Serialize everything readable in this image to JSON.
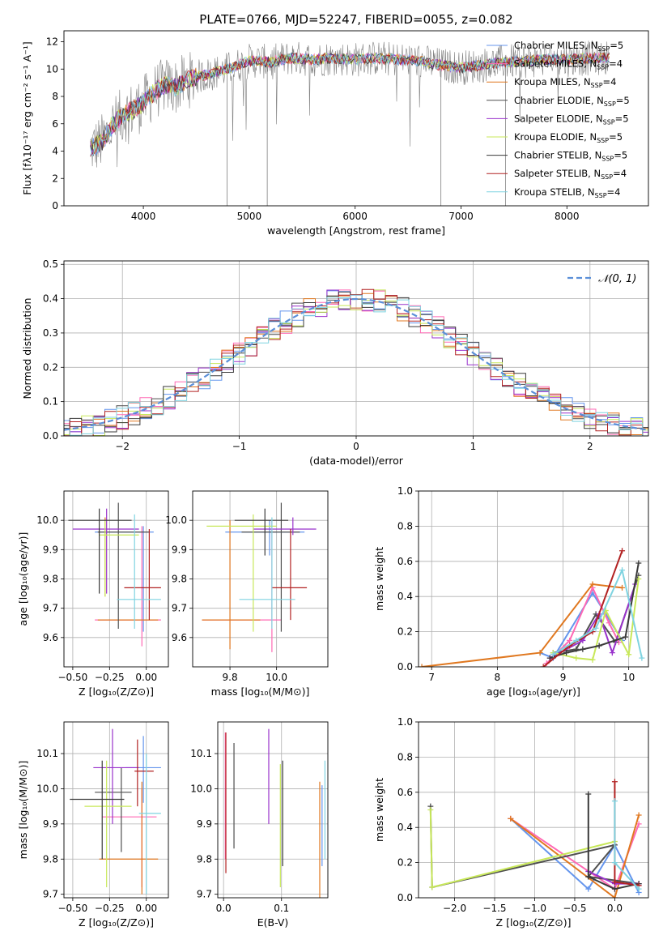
{
  "page": {
    "title": "PLATE=0766, MJD=52247, FIBERID=0055, z=0.082"
  },
  "colors": {
    "chabrier_miles": "#6495ed",
    "salpeter_miles": "#ff69b4",
    "kroupa_miles": "#e07820",
    "chabrier_elodie": "#4f4f4f",
    "salpeter_elodie": "#9932cc",
    "kroupa_elodie": "#c8e85a",
    "chabrier_stelib": "#3a3a3a",
    "salpeter_stelib": "#b22222",
    "kroupa_stelib": "#7fd3e0",
    "normal": "#5b8fd8"
  },
  "chart_data": [
    {
      "id": "spectrum",
      "type": "line",
      "title": "PLATE=0766, MJD=52247, FIBERID=0055, z=0.082",
      "xlabel": "wavelength [Angstrom, rest frame]",
      "ylabel": "Flux [fλ10⁻¹⁷ erg cm⁻² s⁻¹ A⁻¹]",
      "xlim": [
        3250,
        8770
      ],
      "ylim": [
        0,
        12.8
      ],
      "xticks": [
        "4000",
        "5000",
        "6000",
        "7000",
        "8000"
      ],
      "yticks": [
        "0",
        "2",
        "4",
        "6",
        "8",
        "10",
        "12"
      ],
      "legend_position": "right",
      "legend": [
        "Chabrier MILES, N_SSP=5",
        "Salpeter MILES, N_SSP=4",
        "Kroupa MILES, N_SSP=4",
        "Chabrier ELODIE, N_SSP=5",
        "Salpeter ELODIE, N_SSP=5",
        "Kroupa ELODIE, N_SSP=5",
        "Chabrier STELIB, N_SSP=5",
        "Salpeter STELIB, N_SSP=4",
        "Kroupa STELIB, N_SSP=4"
      ],
      "continuum": [
        [
          3500,
          4.2
        ],
        [
          3600,
          4.6
        ],
        [
          3700,
          5.8
        ],
        [
          3800,
          6.6
        ],
        [
          3900,
          7.0
        ],
        [
          4000,
          7.5
        ],
        [
          4100,
          8.3
        ],
        [
          4200,
          8.8
        ],
        [
          4300,
          8.7
        ],
        [
          4400,
          9.1
        ],
        [
          4500,
          9.4
        ],
        [
          4600,
          9.6
        ],
        [
          4700,
          9.8
        ],
        [
          4800,
          10.0
        ],
        [
          4900,
          10.3
        ],
        [
          5000,
          10.6
        ],
        [
          5100,
          10.6
        ],
        [
          5200,
          10.5
        ],
        [
          5300,
          10.7
        ],
        [
          5400,
          10.8
        ],
        [
          5600,
          10.7
        ],
        [
          5800,
          10.8
        ],
        [
          6000,
          10.7
        ],
        [
          6200,
          10.8
        ],
        [
          6400,
          10.7
        ],
        [
          6600,
          10.6
        ],
        [
          6800,
          10.3
        ],
        [
          7000,
          10.1
        ],
        [
          7200,
          10.3
        ],
        [
          7400,
          10.5
        ],
        [
          7600,
          10.6
        ],
        [
          7800,
          10.7
        ],
        [
          8000,
          10.7
        ],
        [
          8200,
          10.8
        ],
        [
          8400,
          10.8
        ]
      ]
    },
    {
      "id": "residuals",
      "type": "histogram",
      "xlabel": "(data-model)/error",
      "ylabel": "Normed distribution",
      "xlim": [
        -2.5,
        2.5
      ],
      "ylim": [
        0,
        0.51
      ],
      "xticks": [
        "−2",
        "−1",
        "0",
        "1",
        "2"
      ],
      "yticks": [
        "0.0",
        "0.1",
        "0.2",
        "0.3",
        "0.4",
        "0.5"
      ],
      "bin_width": 0.1,
      "legend": [
        "𝒩(0, 1)"
      ],
      "legend_position": "top-right",
      "normal_curve": {
        "mean": 0,
        "sigma": 1
      }
    },
    {
      "id": "age-vs-z",
      "type": "errorbar",
      "xlabel": "Z [log₁₀(Z/Z⊙)]",
      "ylabel": "age  [log₁₀(age/yr)]",
      "xlim": [
        -0.56,
        0.15
      ],
      "ylim": [
        9.5,
        10.1
      ],
      "xticks": [
        "−0.50",
        "−0.25",
        "0.00"
      ],
      "yticks": [
        "9.6",
        "9.7",
        "9.8",
        "9.9",
        "10.0"
      ]
    },
    {
      "id": "age-vs-mass",
      "type": "errorbar",
      "xlabel": "mass [log₁₀(M/M⊙)]",
      "ylabel": "",
      "xlim": [
        9.64,
        10.22
      ],
      "ylim": [
        9.5,
        10.1
      ],
      "xticks": [
        "9.8",
        "10.0"
      ],
      "yticks": [
        "9.6",
        "9.7",
        "9.8",
        "9.9",
        "10.0"
      ]
    },
    {
      "id": "mass-weight-vs-age",
      "type": "line",
      "xlabel": "age  [log₁₀(age/yr)]",
      "ylabel": "mass weight",
      "xlim": [
        6.8,
        10.3
      ],
      "ylim": [
        0,
        1
      ],
      "xticks": [
        "7",
        "8",
        "9",
        "10"
      ],
      "yticks": [
        "0.0",
        "0.2",
        "0.4",
        "0.6",
        "0.8",
        "1.0"
      ],
      "series": [
        {
          "color": "chabrier_miles",
          "x": [
            8.65,
            8.85,
            9.45,
            9.65,
            9.9
          ],
          "y": [
            0.08,
            0.05,
            0.42,
            0.3,
            0.15
          ]
        },
        {
          "color": "salpeter_miles",
          "x": [
            8.75,
            9.1,
            9.45,
            9.7,
            9.85
          ],
          "y": [
            0.02,
            0.15,
            0.45,
            0.25,
            0.14
          ]
        },
        {
          "color": "kroupa_miles",
          "x": [
            6.85,
            8.65,
            9.45,
            9.9
          ],
          "y": [
            0.0,
            0.08,
            0.47,
            0.45
          ]
        },
        {
          "color": "chabrier_elodie",
          "x": [
            8.85,
            9.2,
            9.5,
            9.8,
            10.15
          ],
          "y": [
            0.08,
            0.1,
            0.3,
            0.14,
            0.52
          ]
        },
        {
          "color": "salpeter_elodie",
          "x": [
            8.8,
            9.3,
            9.55,
            9.75,
            10.1
          ],
          "y": [
            0.05,
            0.15,
            0.3,
            0.08,
            0.47
          ]
        },
        {
          "color": "kroupa_elodie",
          "x": [
            8.85,
            9.2,
            9.45,
            9.65,
            10.0,
            10.15
          ],
          "y": [
            0.08,
            0.05,
            0.04,
            0.32,
            0.07,
            0.5
          ]
        },
        {
          "color": "chabrier_stelib",
          "x": [
            8.8,
            9.05,
            9.3,
            9.55,
            9.95,
            10.15
          ],
          "y": [
            0.05,
            0.08,
            0.1,
            0.12,
            0.17,
            0.59
          ]
        },
        {
          "color": "salpeter_stelib",
          "x": [
            8.7,
            9.1,
            9.45,
            9.9
          ],
          "y": [
            0.0,
            0.12,
            0.2,
            0.66
          ]
        },
        {
          "color": "kroupa_stelib",
          "x": [
            8.85,
            9.2,
            9.5,
            9.9,
            10.2
          ],
          "y": [
            0.07,
            0.15,
            0.22,
            0.55,
            0.05
          ]
        }
      ]
    },
    {
      "id": "mass-vs-z",
      "type": "errorbar",
      "xlabel": "Z [log₁₀(Z/Z⊙)]",
      "ylabel": "mass [log₁₀(M/M⊙)]",
      "xlim": [
        -0.56,
        0.15
      ],
      "ylim": [
        9.69,
        10.19
      ],
      "xticks": [
        "−0.50",
        "−0.25",
        "0.00"
      ],
      "yticks": [
        "9.7",
        "9.8",
        "9.9",
        "10.0",
        "10.1"
      ]
    },
    {
      "id": "mass-vs-ebv",
      "type": "errorbar",
      "xlabel": "E(B-V)",
      "ylabel": "",
      "xlim": [
        -0.01,
        0.18
      ],
      "ylim": [
        9.69,
        10.19
      ],
      "xticks": [
        "0.0",
        "0.1"
      ],
      "yticks": [
        "9.7",
        "9.8",
        "9.9",
        "10.0",
        "10.1"
      ]
    },
    {
      "id": "mass-weight-vs-z",
      "type": "line",
      "xlabel": "Z [log₁₀(Z/Z⊙)]",
      "ylabel": "mass weight",
      "xlim": [
        -2.45,
        0.42
      ],
      "ylim": [
        0,
        1
      ],
      "xticks": [
        "−2.0",
        "−1.5",
        "−1.0",
        "−0.5",
        "0.0"
      ],
      "yticks": [
        "0.0",
        "0.2",
        "0.4",
        "0.6",
        "0.8",
        "1.0"
      ],
      "series": [
        {
          "color": "chabrier_miles",
          "x": [
            -1.3,
            -0.33,
            0.0,
            0.3
          ],
          "y": [
            0.45,
            0.05,
            0.3,
            0.03
          ]
        },
        {
          "color": "salpeter_miles",
          "x": [
            -1.3,
            0.0,
            0.3
          ],
          "y": [
            0.45,
            0.05,
            0.42
          ]
        },
        {
          "color": "kroupa_miles",
          "x": [
            -1.3,
            0.0,
            0.3
          ],
          "y": [
            0.45,
            0.0,
            0.47
          ]
        },
        {
          "color": "chabrier_elodie",
          "x": [
            -2.3,
            -2.28,
            0.0,
            -0.33,
            0.3
          ],
          "y": [
            0.52,
            0.06,
            0.3,
            0.12,
            0.08
          ]
        },
        {
          "color": "salpeter_elodie",
          "x": [
            -0.33,
            0.0,
            0.3
          ],
          "y": [
            0.15,
            0.08,
            0.08
          ]
        },
        {
          "color": "kroupa_elodie",
          "x": [
            -2.3,
            -2.28,
            0.0
          ],
          "y": [
            0.5,
            0.06,
            0.32
          ]
        },
        {
          "color": "chabrier_stelib",
          "x": [
            -0.33,
            -0.33,
            0.0,
            0.3
          ],
          "y": [
            0.59,
            0.12,
            0.05,
            0.08
          ]
        },
        {
          "color": "salpeter_stelib",
          "x": [
            0.0,
            0.0,
            0.3
          ],
          "y": [
            0.66,
            0.09,
            0.07
          ]
        },
        {
          "color": "kroupa_stelib",
          "x": [
            0.0,
            0.0,
            0.3
          ],
          "y": [
            0.55,
            0.2,
            0.05
          ]
        }
      ]
    }
  ]
}
